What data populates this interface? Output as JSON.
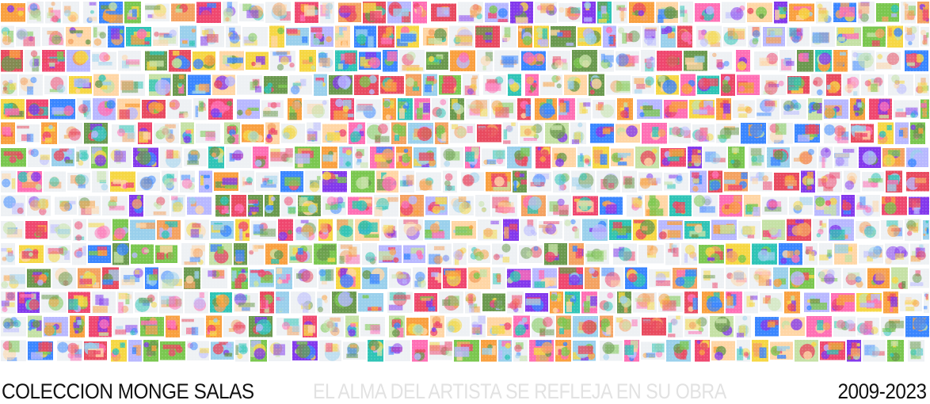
{
  "collection_title": "COLECCION MONGE SALAS",
  "tagline": "EL ALMA DEL ARTISTA SE REFLEJA EN SU OBRA",
  "years": "2009-2023",
  "colors": {
    "background": "#ffffff",
    "title_text": "#111111",
    "tagline_text": "#e2e2e2",
    "palette": [
      "#e84a5f",
      "#f9a03f",
      "#f6d743",
      "#7ac74f",
      "#2ec4b6",
      "#3a86ff",
      "#8338ec",
      "#ff6fb5",
      "#9ad0ec",
      "#c5e1a5",
      "#ffd6a5",
      "#b8b8ff",
      "#f4a261",
      "#6a994e",
      "#ef476f"
    ]
  }
}
